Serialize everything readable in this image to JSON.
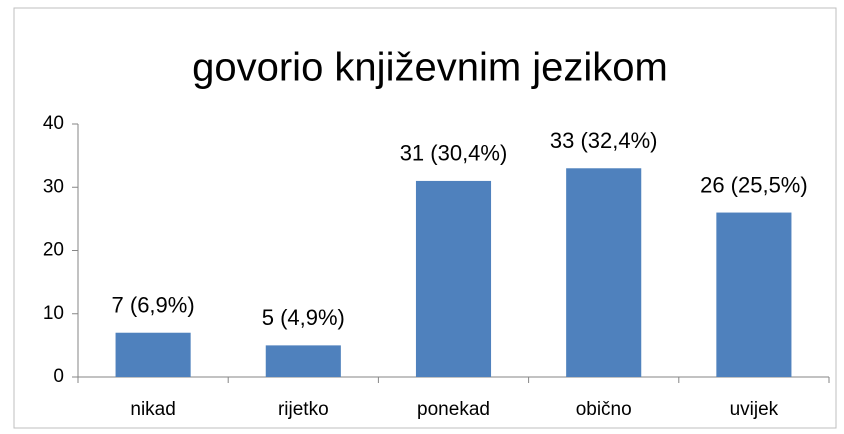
{
  "chart_data": {
    "type": "bar",
    "title": "govorio književnim jezikom",
    "categories": [
      "nikad",
      "rijetko",
      "ponekad",
      "obično",
      "uvijek"
    ],
    "values": [
      7,
      5,
      31,
      33,
      26
    ],
    "value_labels": [
      "7 (6,9%)",
      "5 (4,9%)",
      "31 (30,4%)",
      "33 (32,4%)",
      "26 (25,5%)"
    ],
    "color": "#4f81bd",
    "ylim": [
      0,
      40
    ],
    "yticks": [
      0,
      10,
      20,
      30,
      40
    ],
    "grid": false
  }
}
